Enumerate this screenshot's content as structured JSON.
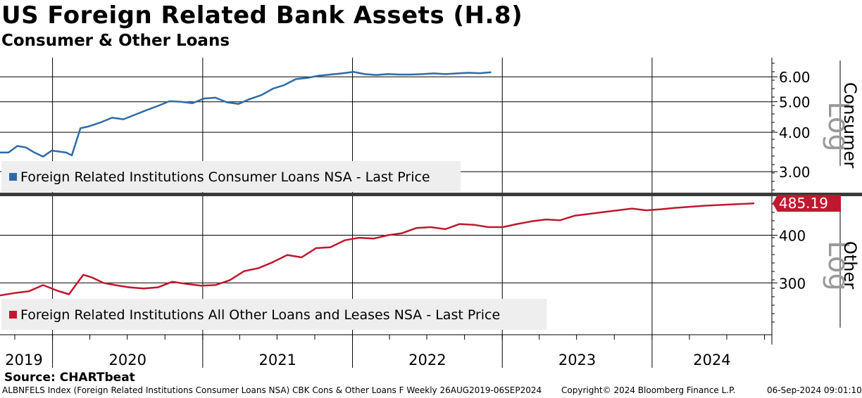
{
  "title": "US Foreign Related Bank Assets (H.8)",
  "subtitle": "Consumer & Other Loans",
  "source": "Source: CHARTbeat",
  "footer": {
    "left": "ALBNFELS Index (Foreign Related Institutions Consumer Loans NSA) CBK Cons & Other Loans F  Weekly 26AUG2019-06SEP2024",
    "copyright": "Copyright© 2024 Bloomberg Finance L.P.",
    "timestamp": "06-Sep-2024 09:01:10"
  },
  "colors": {
    "consumer_line": "#2e6ba6",
    "other_line": "#c0182f",
    "divider": "#3a3a3a",
    "grid": "#000000",
    "legend_bg": "#eeeeee",
    "log_label": "#999999"
  },
  "chart_data": [
    {
      "type": "line",
      "panel": "top",
      "scale": "log",
      "ylim": [
        2.6,
        6.9
      ],
      "yticks": [
        "6.00",
        "5.00",
        "4.00",
        "3.00"
      ],
      "ytick_values": [
        6,
        5,
        4,
        3
      ],
      "axis_label": "Consumer",
      "scale_label": "Log",
      "grid": true,
      "legend_position": "bottom-left",
      "series": [
        {
          "name": "Foreign Related Institutions Consumer Loans NSA - Last Price",
          "x": [
            "2019-08-26",
            "2019-09-16",
            "2019-10-07",
            "2019-10-28",
            "2019-11-18",
            "2019-12-09",
            "2019-12-30",
            "2020-01-13",
            "2020-02-03",
            "2020-02-17",
            "2020-03-09",
            "2020-03-30",
            "2020-04-27",
            "2020-05-25",
            "2020-06-22",
            "2020-07-20",
            "2020-08-17",
            "2020-09-14",
            "2020-10-12",
            "2020-11-09",
            "2020-12-07",
            "2021-01-04",
            "2021-02-01",
            "2021-03-01",
            "2021-03-29",
            "2021-04-26",
            "2021-05-24",
            "2021-06-21",
            "2021-07-19",
            "2021-08-16",
            "2021-09-13",
            "2021-10-11",
            "2021-11-08",
            "2021-12-06",
            "2022-01-03",
            "2022-01-31",
            "2022-02-28",
            "2022-03-28",
            "2022-04-25",
            "2022-05-23",
            "2022-06-20",
            "2022-07-18",
            "2022-08-15",
            "2022-09-12",
            "2022-10-10",
            "2022-11-07",
            "2022-12-05"
          ],
          "values": [
            3.45,
            3.45,
            3.62,
            3.58,
            3.45,
            3.35,
            3.5,
            3.48,
            3.45,
            3.38,
            4.12,
            4.18,
            4.3,
            4.45,
            4.4,
            4.55,
            4.7,
            4.85,
            5.02,
            5.0,
            4.95,
            5.12,
            5.15,
            4.98,
            4.92,
            5.1,
            5.25,
            5.5,
            5.65,
            5.9,
            5.95,
            6.05,
            6.1,
            6.15,
            6.22,
            6.12,
            6.08,
            6.12,
            6.1,
            6.1,
            6.12,
            6.15,
            6.12,
            6.15,
            6.18,
            6.16,
            6.2
          ]
        }
      ]
    },
    {
      "type": "line",
      "panel": "bottom",
      "scale": "log",
      "ylim": [
        225,
        500
      ],
      "yticks": [
        "400",
        "300"
      ],
      "ytick_values": [
        400,
        300
      ],
      "axis_label": "Other",
      "scale_label": "Log",
      "last_value_label": "485.19",
      "grid": true,
      "legend_position": "bottom-left",
      "series": [
        {
          "name": "Foreign Related Institutions All Other Loans and Leases NSA - Last Price",
          "x": [
            "2019-08-26",
            "2019-09-30",
            "2019-11-04",
            "2019-12-09",
            "2020-01-13",
            "2020-02-10",
            "2020-03-16",
            "2020-04-06",
            "2020-05-04",
            "2020-06-01",
            "2020-07-06",
            "2020-08-10",
            "2020-09-14",
            "2020-10-19",
            "2020-11-23",
            "2020-12-28",
            "2021-02-01",
            "2021-03-08",
            "2021-04-12",
            "2021-05-17",
            "2021-06-21",
            "2021-07-26",
            "2021-08-30",
            "2021-10-04",
            "2021-11-08",
            "2021-12-13",
            "2022-01-17",
            "2022-02-21",
            "2022-03-28",
            "2022-05-02",
            "2022-06-06",
            "2022-07-11",
            "2022-08-15",
            "2022-09-19",
            "2022-10-24",
            "2022-11-28",
            "2023-01-02",
            "2023-02-06",
            "2023-03-13",
            "2023-04-17",
            "2023-05-22",
            "2023-06-26",
            "2023-07-31",
            "2023-09-04",
            "2023-10-09",
            "2023-11-13",
            "2023-12-18",
            "2024-01-22",
            "2024-02-26",
            "2024-04-01",
            "2024-05-06",
            "2024-06-10",
            "2024-07-15",
            "2024-08-19",
            "2024-09-06"
          ],
          "values": [
            278,
            282,
            285,
            296,
            286,
            280,
            315,
            310,
            300,
            296,
            292,
            290,
            292,
            302,
            298,
            295,
            296,
            305,
            322,
            328,
            340,
            355,
            350,
            370,
            372,
            388,
            394,
            392,
            400,
            405,
            418,
            420,
            415,
            428,
            426,
            420,
            420,
            428,
            435,
            440,
            438,
            450,
            455,
            460,
            465,
            470,
            465,
            468,
            472,
            475,
            478,
            480,
            482,
            484,
            485.19
          ]
        }
      ]
    }
  ],
  "x_axis": {
    "year_labels": [
      "2019",
      "2020",
      "2021",
      "2022",
      "2023",
      "2024"
    ],
    "start": "2019-08-26",
    "end": "2024-09-06"
  }
}
